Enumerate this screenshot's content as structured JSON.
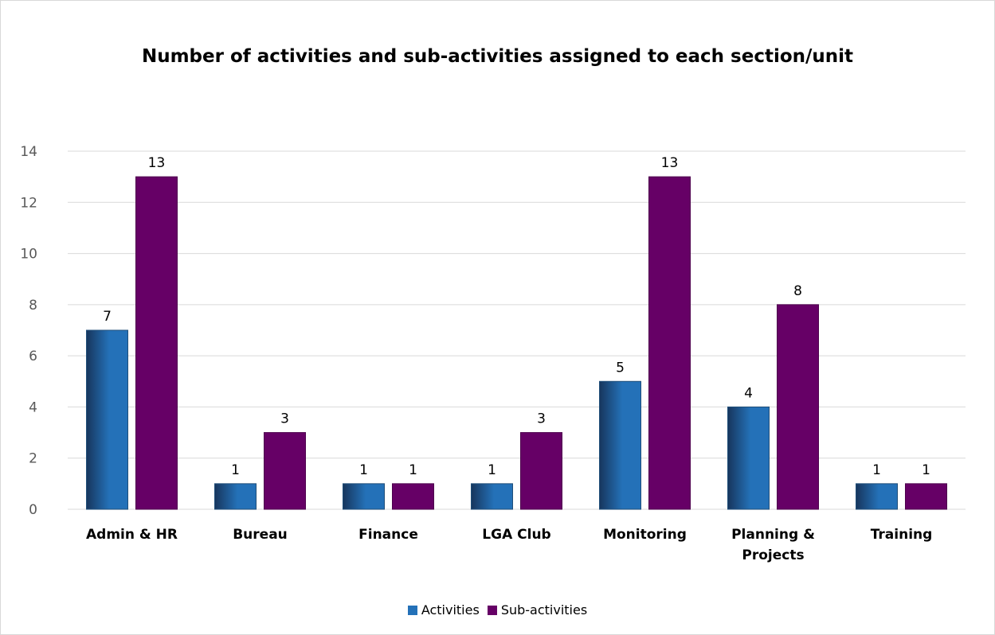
{
  "chart_data": {
    "type": "bar",
    "title": "Number of activities and sub-activities assigned to each section/unit",
    "categories": [
      "Admin & HR",
      "Bureau",
      "Finance",
      "LGA Club",
      "Monitoring",
      "Planning & Projects",
      "Training"
    ],
    "category_lines": [
      [
        "Admin & HR"
      ],
      [
        "Bureau"
      ],
      [
        "Finance"
      ],
      [
        "LGA Club"
      ],
      [
        "Monitoring"
      ],
      [
        "Planning &",
        "Projects"
      ],
      [
        "Training"
      ]
    ],
    "series": [
      {
        "name": "Activities",
        "values": [
          7,
          1,
          1,
          1,
          5,
          4,
          1
        ],
        "color": "#2471b8",
        "color_dark": "#17365d"
      },
      {
        "name": "Sub-activities",
        "values": [
          13,
          3,
          1,
          3,
          13,
          8,
          1
        ],
        "color": "#660066"
      }
    ],
    "ylim": [
      0,
      14
    ],
    "yticks": [
      0,
      2,
      4,
      6,
      8,
      10,
      12,
      14
    ],
    "xlabel": "",
    "ylabel": "",
    "grid": true,
    "legend": "bottom",
    "data_labels": true
  }
}
